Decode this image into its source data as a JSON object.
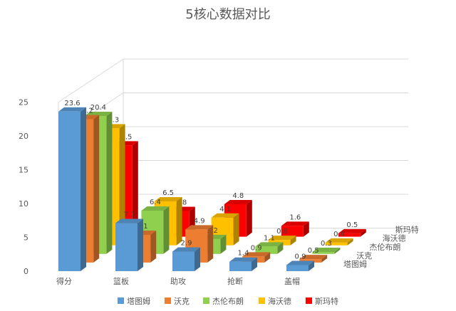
{
  "chart_data": {
    "type": "bar",
    "variant": "3d-clustered-column",
    "title": "5核心数据对比",
    "categories": [
      "得分",
      "篮板",
      "助攻",
      "抢断",
      "盖帽"
    ],
    "series": [
      {
        "name": "塔图姆",
        "color": "#5B9BD5",
        "values": [
          23.6,
          7.1,
          2.9,
          1.4,
          0.9
        ]
      },
      {
        "name": "沃克",
        "color": "#ED7D31",
        "values": [
          21.2,
          4.1,
          4.9,
          0.9,
          0.5
        ]
      },
      {
        "name": "杰伦布朗",
        "color": "#8FD14F",
        "values": [
          20.4,
          6.4,
          2.2,
          1.1,
          0.3
        ]
      },
      {
        "name": "海沃德",
        "color": "#FFC000",
        "values": [
          17.3,
          6.5,
          4.1,
          0.8,
          0.4
        ]
      },
      {
        "name": "斯玛特",
        "color": "#FF0000",
        "values": [
          13.5,
          3.8,
          4.8,
          1.6,
          0.5
        ]
      }
    ],
    "yticks": [
      0,
      5,
      10,
      15,
      20,
      25
    ],
    "ylim": [
      0,
      25
    ],
    "grid": true,
    "legend": "bottom",
    "data_labels": true
  }
}
